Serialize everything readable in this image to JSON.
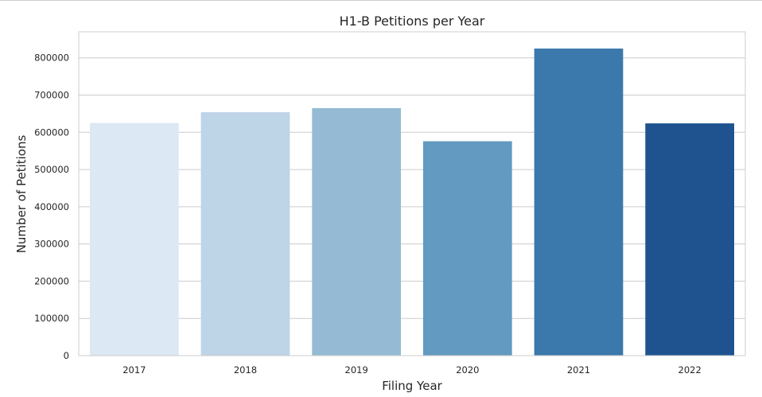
{
  "chart_data": {
    "type": "bar",
    "title": "H1-B Petitions per Year",
    "xlabel": "Filing Year",
    "ylabel": "Number of Petitions",
    "categories": [
      "2017",
      "2018",
      "2019",
      "2020",
      "2021",
      "2022"
    ],
    "values": [
      625000,
      654000,
      665000,
      576000,
      825000,
      624000
    ],
    "colors": [
      "#dce8f4",
      "#bed4e7",
      "#94bbd3",
      "#629ac1",
      "#3b78ab",
      "#1e5390"
    ],
    "ylim": [
      0,
      870000
    ],
    "yticks": [
      0,
      100000,
      200000,
      300000,
      400000,
      500000,
      600000,
      700000,
      800000
    ],
    "ytick_labels": [
      "0",
      "100000",
      "200000",
      "300000",
      "400000",
      "500000",
      "600000",
      "700000",
      "800000"
    ],
    "grid": "horizontal",
    "frame_color": "#cccccc",
    "grid_color": "#cccccc"
  }
}
